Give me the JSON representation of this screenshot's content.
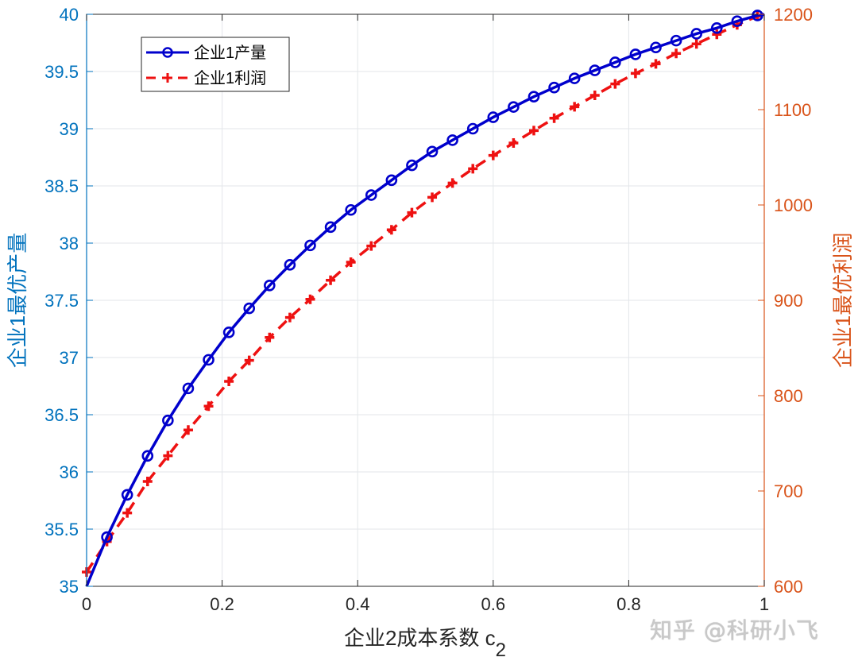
{
  "chart_data": {
    "type": "line",
    "title": "",
    "xlabel": "企业2成本系数 c",
    "xlabel_subscript": "2",
    "ylabel_left": "企业1最优产量",
    "ylabel_right": "企业1最优利润",
    "xlim": [
      0,
      1
    ],
    "ylim_left": [
      35,
      40
    ],
    "ylim_right": [
      600,
      1200
    ],
    "x_ticks": [
      "0",
      "0.2",
      "0.4",
      "0.6",
      "0.8",
      "1"
    ],
    "y_ticks_left": [
      "35",
      "35.5",
      "36",
      "36.5",
      "37",
      "37.5",
      "38",
      "38.5",
      "39",
      "39.5",
      "40"
    ],
    "y_ticks_right": [
      "600",
      "700",
      "800",
      "900",
      "1000",
      "1100",
      "1200"
    ],
    "grid": true,
    "legend_position": "upper-left",
    "colors": {
      "left_axis": "#0072BD",
      "right_axis": "#D95319",
      "series_output": "#0000CC",
      "series_profit": "#EE1111"
    },
    "x": [
      0,
      0.03,
      0.06,
      0.09,
      0.12,
      0.15,
      0.18,
      0.21,
      0.24,
      0.27,
      0.3,
      0.33,
      0.36,
      0.39,
      0.42,
      0.45,
      0.48,
      0.51,
      0.54,
      0.57,
      0.6,
      0.63,
      0.66,
      0.69,
      0.72,
      0.75,
      0.78,
      0.81,
      0.84,
      0.87,
      0.9,
      0.93,
      0.96,
      0.99,
      1.0
    ],
    "series": [
      {
        "name": "企业1产量",
        "axis": "left",
        "style": "solid line with circle markers",
        "values": [
          35.0,
          35.43,
          35.8,
          36.14,
          36.45,
          36.73,
          36.98,
          37.22,
          37.43,
          37.63,
          37.81,
          37.98,
          38.14,
          38.29,
          38.42,
          38.55,
          38.68,
          38.8,
          38.9,
          39.0,
          39.1,
          39.19,
          39.28,
          39.36,
          39.44,
          39.51,
          39.58,
          39.65,
          39.71,
          39.77,
          39.83,
          39.88,
          39.94,
          39.99,
          40.0
        ]
      },
      {
        "name": "企业1利润",
        "axis": "right",
        "style": "dashed line with plus markers",
        "values": [
          615,
          647,
          677,
          710,
          737,
          764,
          789,
          815,
          837,
          861,
          882,
          901,
          921,
          940,
          957,
          974,
          992,
          1008,
          1023,
          1038,
          1052,
          1065,
          1078,
          1091,
          1103,
          1115,
          1127,
          1138,
          1148,
          1159,
          1169,
          1179,
          1189,
          1198,
          1200
        ]
      }
    ]
  },
  "legend": {
    "items": [
      {
        "label": "企业1产量"
      },
      {
        "label": "企业1利润"
      }
    ]
  },
  "watermark": "知乎 @科研小飞"
}
